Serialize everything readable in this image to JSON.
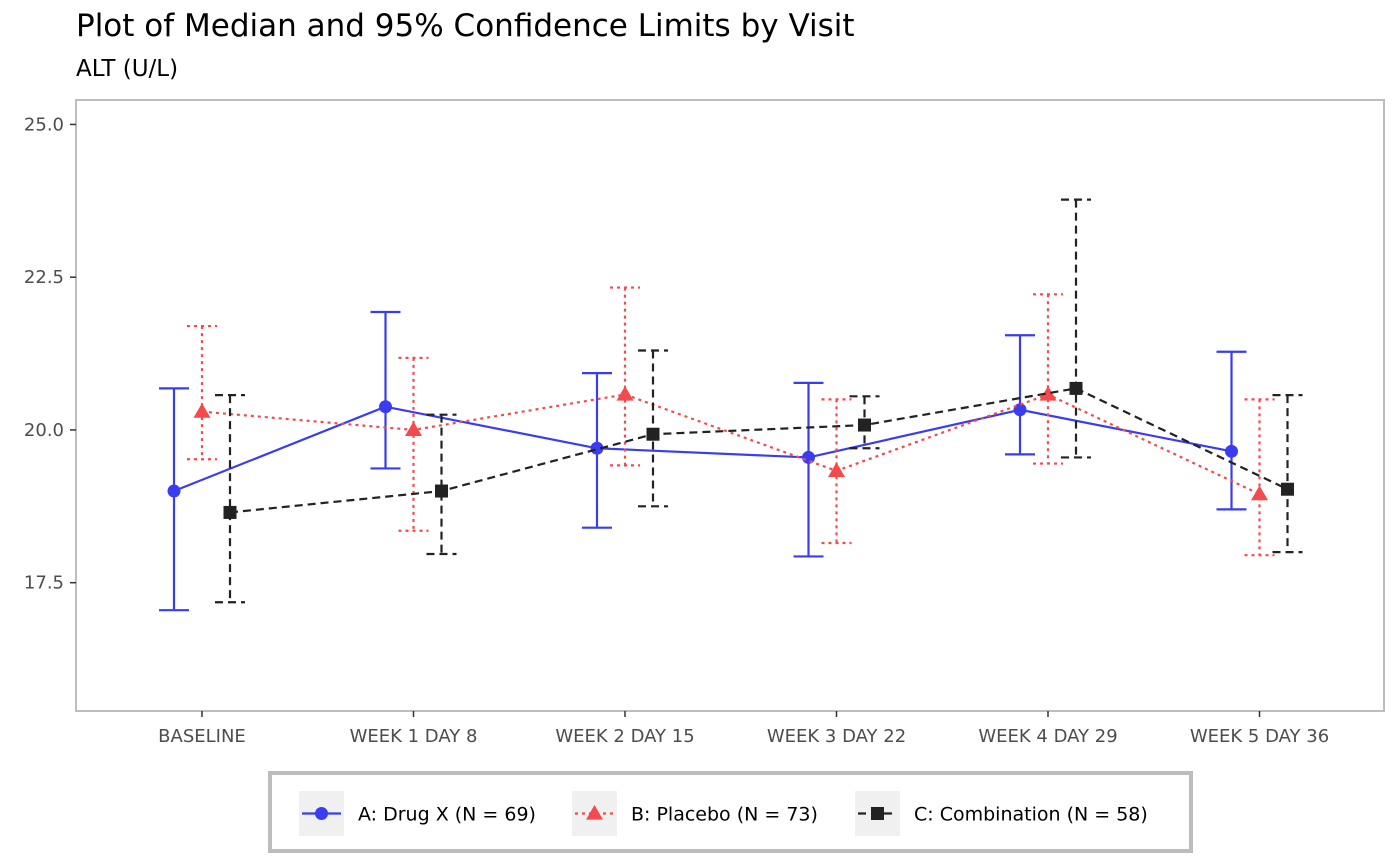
{
  "chart_data": {
    "type": "line",
    "title": "Plot of Median and 95% Confidence Limits by Visit",
    "subtitle": "ALT (U/L)",
    "xlabel": "",
    "ylabel": "",
    "categories": [
      "BASELINE",
      "WEEK 1 DAY 8",
      "WEEK 2 DAY 15",
      "WEEK 3 DAY 22",
      "WEEK 4 DAY 29",
      "WEEK 5 DAY 36"
    ],
    "ylim": [
      15.4,
      25.4
    ],
    "yticks": [
      17.5,
      20.0,
      22.5,
      25.0
    ],
    "ytick_labels": [
      "17.5",
      "20.0",
      "22.5",
      "25.0"
    ],
    "grid": false,
    "legend_position": "bottom",
    "series": [
      {
        "name": "A: Drug X (N = 69)",
        "color": "#3a3cf0",
        "marker": "circle",
        "dash": "solid",
        "median": [
          19.0,
          20.38,
          19.7,
          19.55,
          20.33,
          19.65
        ],
        "lower": [
          17.05,
          19.37,
          18.4,
          17.93,
          19.6,
          18.7
        ],
        "upper": [
          20.68,
          21.93,
          20.93,
          20.77,
          21.55,
          21.28
        ]
      },
      {
        "name": "B: Placebo (N = 73)",
        "color": "#f24a4d",
        "marker": "triangle",
        "dash": "dotted",
        "median": [
          20.3,
          20.0,
          20.58,
          19.33,
          20.58,
          18.95
        ],
        "lower": [
          19.52,
          18.35,
          19.42,
          18.15,
          19.45,
          17.95
        ],
        "upper": [
          21.7,
          21.18,
          22.33,
          20.5,
          22.22,
          20.5
        ]
      },
      {
        "name": "C: Combination (N = 58)",
        "color": "#222222",
        "marker": "square",
        "dash": "dashed",
        "median": [
          18.65,
          19.0,
          19.93,
          20.08,
          20.68,
          19.03
        ],
        "lower": [
          17.18,
          17.97,
          18.75,
          19.7,
          19.55,
          18.0
        ],
        "upper": [
          20.57,
          20.25,
          21.3,
          20.55,
          23.77,
          20.57
        ]
      }
    ]
  }
}
